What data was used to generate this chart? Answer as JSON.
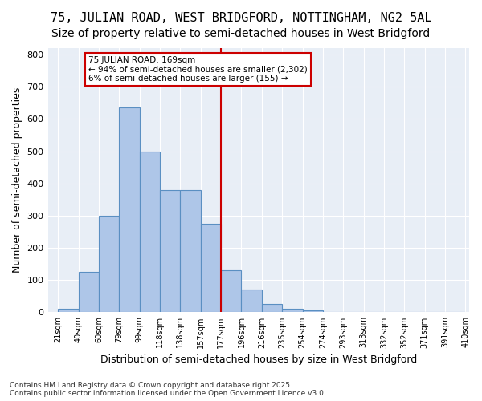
{
  "title1": "75, JULIAN ROAD, WEST BRIDGFORD, NOTTINGHAM, NG2 5AL",
  "title2": "Size of property relative to semi-detached houses in West Bridgford",
  "xlabel": "Distribution of semi-detached houses by size in West Bridgford",
  "ylabel": "Number of semi-detached properties",
  "footnote": "Contains HM Land Registry data © Crown copyright and database right 2025.\nContains public sector information licensed under the Open Government Licence v3.0.",
  "bin_labels": [
    "21sqm",
    "40sqm",
    "60sqm",
    "79sqm",
    "99sqm",
    "118sqm",
    "138sqm",
    "157sqm",
    "177sqm",
    "196sqm",
    "216sqm",
    "235sqm",
    "254sqm",
    "274sqm",
    "293sqm",
    "313sqm",
    "332sqm",
    "352sqm",
    "371sqm",
    "391sqm",
    "410sqm"
  ],
  "bar_values": [
    10,
    125,
    300,
    635,
    500,
    380,
    380,
    275,
    130,
    70,
    25,
    10,
    5,
    2,
    2,
    1,
    0,
    0,
    0,
    0
  ],
  "bar_color": "#aec6e8",
  "bar_edge_color": "#5a8fc2",
  "vline_x": 8.0,
  "vline_color": "#cc0000",
  "annotation_text": "75 JULIAN ROAD: 169sqm\n← 94% of semi-detached houses are smaller (2,302)\n6% of semi-detached houses are larger (155) →",
  "annotation_box_color": "#ffffff",
  "annotation_box_edge": "#cc0000",
  "ylim": [
    0,
    820
  ],
  "yticks": [
    0,
    100,
    200,
    300,
    400,
    500,
    600,
    700,
    800
  ],
  "bg_color": "#e8eef6",
  "title1_fontsize": 11,
  "title2_fontsize": 10,
  "xlabel_fontsize": 9,
  "ylabel_fontsize": 9
}
